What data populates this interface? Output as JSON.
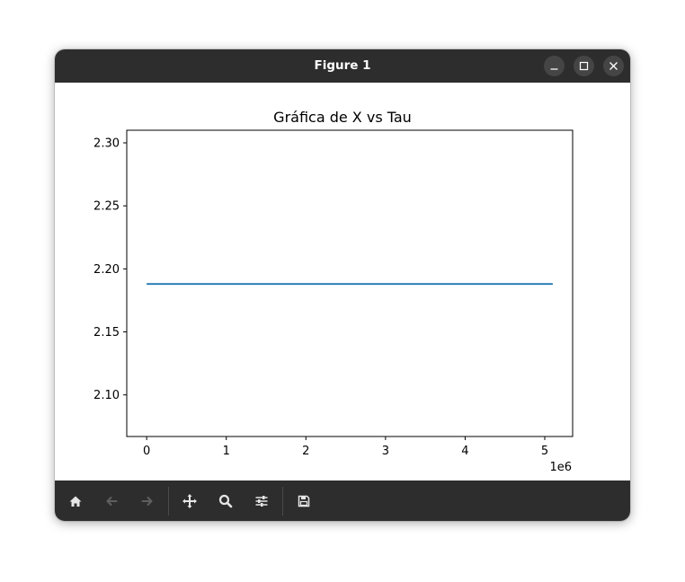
{
  "window": {
    "title": "Figure 1",
    "controls": [
      "minimize",
      "maximize",
      "close"
    ]
  },
  "toolbar": {
    "buttons": [
      {
        "name": "home",
        "icon": "home-icon",
        "enabled": true
      },
      {
        "name": "back",
        "icon": "arrow-left-icon",
        "enabled": false
      },
      {
        "name": "forward",
        "icon": "arrow-right-icon",
        "enabled": false
      },
      {
        "name": "pan",
        "icon": "move-icon",
        "enabled": true
      },
      {
        "name": "zoom",
        "icon": "magnifier-icon",
        "enabled": true
      },
      {
        "name": "configure-subplots",
        "icon": "sliders-icon",
        "enabled": true
      },
      {
        "name": "save",
        "icon": "floppy-disk-icon",
        "enabled": true
      }
    ]
  },
  "chart_data": {
    "type": "line",
    "title": "Gráfica de X vs Tau",
    "xlabel": "",
    "ylabel": "",
    "x_offset_label": "1e6",
    "x": [
      0,
      5100000
    ],
    "series": [
      {
        "values": [
          2.188,
          2.188
        ],
        "color": "#1f77b4"
      }
    ],
    "xlim": [
      -250000,
      5350000
    ],
    "ylim": [
      2.067,
      2.31
    ],
    "xticks": [
      0,
      1000000,
      2000000,
      3000000,
      4000000,
      5000000
    ],
    "xtick_labels": [
      "0",
      "1",
      "2",
      "3",
      "4",
      "5"
    ],
    "yticks": [
      2.1,
      2.15,
      2.2,
      2.25,
      2.3
    ],
    "ytick_labels": [
      "2.10",
      "2.15",
      "2.20",
      "2.25",
      "2.30"
    ],
    "grid": false,
    "legend": "none"
  }
}
